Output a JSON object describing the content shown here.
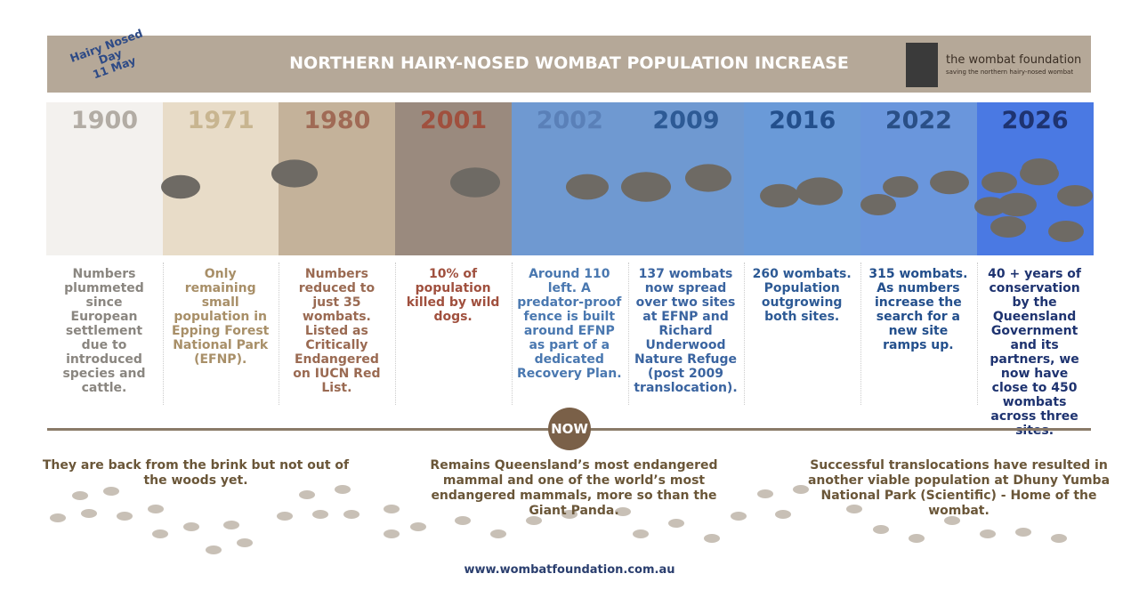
{
  "header": {
    "title": "NORTHERN HAIRY-NOSED WOMBAT POPULATION INCREASE",
    "badge": [
      "Hairy Nosed",
      "Day",
      "11 May"
    ],
    "logo_name": "the wombat foundation",
    "logo_tagline": "saving the northern hairy-nosed wombat"
  },
  "timeline": [
    {
      "year": "1900",
      "text": "Numbers plummeted since European settlement due to introduced species and cattle."
    },
    {
      "year": "1971",
      "text": "Only remaining small population in Epping Forest National Park (EFNP)."
    },
    {
      "year": "1980",
      "text": "Numbers reduced to just 35 wombats. Listed as Critically Endangered on IUCN Red List."
    },
    {
      "year": "2001",
      "text": "10% of population killed by wild dogs."
    },
    {
      "year": "2002",
      "text": "Around 110 left. A predator-proof fence is built around EFNP as part of a dedicated Recovery Plan."
    },
    {
      "year": "2009",
      "text": "137 wombats now spread over two sites at EFNP and Richard Underwood Nature Refuge (post 2009 translocation)."
    },
    {
      "year": "2016",
      "text": "260 wombats. Population outgrowing both sites."
    },
    {
      "year": "2022",
      "text": "315 wombats. As numbers increase the search for a new site ramps up."
    },
    {
      "year": "2026",
      "text": "40 + years of conservation by the Queensland Government and its partners, we now have close to 450 wombats across three sites."
    }
  ],
  "now": "NOW",
  "statements": [
    "They are back from the brink but not out of the woods yet.",
    "Remains Queensland’s most endangered mammal and one of the world’s most endangered mammals, more so than the Giant Panda.",
    "Successful translocations have resulted in another viable population at Dhuny Yumba National Park (Scientific) - Home of the wombat."
  ],
  "url": "www.wombatfoundation.com.au"
}
